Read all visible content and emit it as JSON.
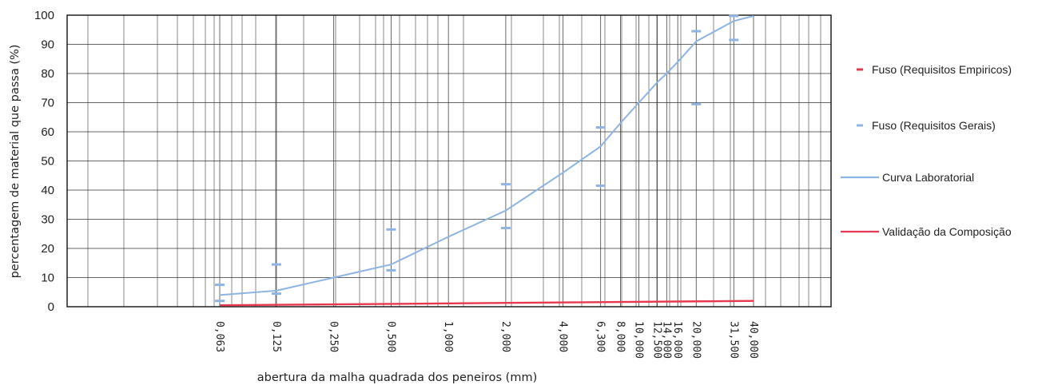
{
  "chart_data": {
    "type": "line",
    "title": "",
    "xlabel": "abertura da malha quadrada dos peneiros (mm)",
    "ylabel": "percentagem de material que passa (%)",
    "x_scale": "log",
    "ylim": [
      0,
      100
    ],
    "y_ticks": [
      0,
      10,
      20,
      30,
      40,
      50,
      60,
      70,
      80,
      90,
      100
    ],
    "x_ticks": [
      {
        "value": 0.063,
        "label": "0,063"
      },
      {
        "value": 0.125,
        "label": "0,125"
      },
      {
        "value": 0.25,
        "label": "0,250"
      },
      {
        "value": 0.5,
        "label": "0,500"
      },
      {
        "value": 1.0,
        "label": "1,000"
      },
      {
        "value": 2.0,
        "label": "2,000"
      },
      {
        "value": 4.0,
        "label": "4,000"
      },
      {
        "value": 6.3,
        "label": "6,300"
      },
      {
        "value": 8.0,
        "label": "8,000"
      },
      {
        "value": 10.0,
        "label": "10,000"
      },
      {
        "value": 12.5,
        "label": "12,500"
      },
      {
        "value": 14.0,
        "label": "14,000"
      },
      {
        "value": 16.0,
        "label": "16,000"
      },
      {
        "value": 20.0,
        "label": "20,000"
      },
      {
        "value": 31.5,
        "label": "31,500"
      },
      {
        "value": 40.0,
        "label": "40,000"
      }
    ],
    "grid": true,
    "legend_position": "right",
    "series": [
      {
        "name": "Fuso (Requisitos Empiricos)",
        "style": "dash-markers",
        "color": "#e8384f",
        "points": []
      },
      {
        "name": "Fuso (Requisitos Gerais)",
        "style": "dash-markers",
        "color": "#8db4e2",
        "points": [
          {
            "x": 0.063,
            "y": 7.5
          },
          {
            "x": 0.063,
            "y": 2
          },
          {
            "x": 0.125,
            "y": 14.5
          },
          {
            "x": 0.125,
            "y": 4.5
          },
          {
            "x": 0.5,
            "y": 26.5
          },
          {
            "x": 0.5,
            "y": 12.5
          },
          {
            "x": 2.0,
            "y": 42
          },
          {
            "x": 2.0,
            "y": 27
          },
          {
            "x": 6.3,
            "y": 61.5
          },
          {
            "x": 6.3,
            "y": 41.5
          },
          {
            "x": 20.0,
            "y": 94.5
          },
          {
            "x": 20.0,
            "y": 69.5
          },
          {
            "x": 31.5,
            "y": 101
          },
          {
            "x": 31.5,
            "y": 91.5
          }
        ]
      },
      {
        "name": "Curva Laboratorial",
        "style": "line",
        "color": "#8db4e2",
        "points": [
          {
            "x": 0.063,
            "y": 4
          },
          {
            "x": 0.125,
            "y": 5.5
          },
          {
            "x": 0.25,
            "y": 10
          },
          {
            "x": 0.5,
            "y": 14.5
          },
          {
            "x": 1.0,
            "y": 24
          },
          {
            "x": 2.0,
            "y": 33
          },
          {
            "x": 4.0,
            "y": 46
          },
          {
            "x": 6.3,
            "y": 55
          },
          {
            "x": 8.0,
            "y": 63
          },
          {
            "x": 10.0,
            "y": 70
          },
          {
            "x": 12.5,
            "y": 77
          },
          {
            "x": 14.0,
            "y": 80
          },
          {
            "x": 16.0,
            "y": 84
          },
          {
            "x": 20.0,
            "y": 91
          },
          {
            "x": 31.5,
            "y": 98
          },
          {
            "x": 40.0,
            "y": 101
          }
        ]
      },
      {
        "name": "Validação da Composição",
        "style": "line",
        "color": "#e8384f",
        "points": [
          {
            "x": 0.063,
            "y": 0.5
          },
          {
            "x": 40.0,
            "y": 2
          }
        ]
      }
    ]
  }
}
